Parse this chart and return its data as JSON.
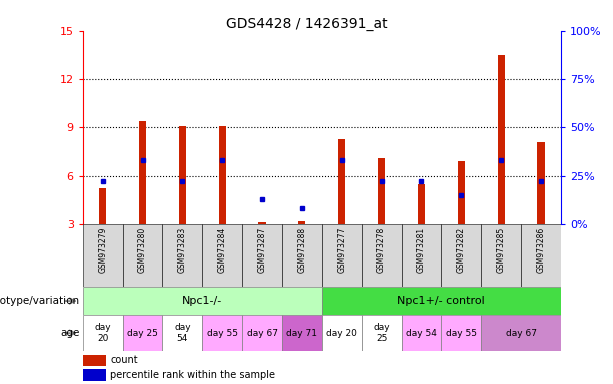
{
  "title": "GDS4428 / 1426391_at",
  "samples": [
    "GSM973279",
    "GSM973280",
    "GSM973283",
    "GSM973284",
    "GSM973287",
    "GSM973288",
    "GSM973277",
    "GSM973278",
    "GSM973281",
    "GSM973282",
    "GSM973285",
    "GSM973286"
  ],
  "counts": [
    5.2,
    9.4,
    9.1,
    9.1,
    3.1,
    3.15,
    8.3,
    7.1,
    5.5,
    6.9,
    13.5,
    8.1
  ],
  "percentiles": [
    22,
    33,
    22,
    33,
    13,
    8,
    33,
    22,
    22,
    15,
    33,
    22
  ],
  "ylim_left": [
    3,
    15
  ],
  "ylim_right": [
    0,
    100
  ],
  "yticks_left": [
    3,
    6,
    9,
    12,
    15
  ],
  "yticks_right": [
    0,
    25,
    50,
    75,
    100
  ],
  "bar_color": "#cc2200",
  "percentile_color": "#0000cc",
  "genotype_groups": [
    {
      "label": "Npc1-/-",
      "start": 0,
      "end": 5,
      "color": "#bbffbb"
    },
    {
      "label": "Npc1+/- control",
      "start": 6,
      "end": 11,
      "color": "#44dd44"
    }
  ],
  "age_groups": [
    {
      "s": 0,
      "e": 0,
      "label": "day\n20",
      "color": "#ffffff"
    },
    {
      "s": 1,
      "e": 1,
      "label": "day 25",
      "color": "#ffaaff"
    },
    {
      "s": 2,
      "e": 2,
      "label": "day\n54",
      "color": "#ffffff"
    },
    {
      "s": 3,
      "e": 3,
      "label": "day 55",
      "color": "#ffaaff"
    },
    {
      "s": 4,
      "e": 4,
      "label": "day 67",
      "color": "#ffaaff"
    },
    {
      "s": 5,
      "e": 5,
      "label": "day 71",
      "color": "#cc66cc"
    },
    {
      "s": 6,
      "e": 6,
      "label": "day 20",
      "color": "#ffffff"
    },
    {
      "s": 7,
      "e": 7,
      "label": "day\n25",
      "color": "#ffffff"
    },
    {
      "s": 8,
      "e": 8,
      "label": "day 54",
      "color": "#ffaaff"
    },
    {
      "s": 9,
      "e": 9,
      "label": "day 55",
      "color": "#ffaaff"
    },
    {
      "s": 10,
      "e": 11,
      "label": "day 67",
      "color": "#cc88cc"
    }
  ],
  "left_label_genotype": "genotype/variation",
  "left_label_age": "age",
  "legend_count": "count",
  "legend_percentile": "percentile rank within the sample",
  "background_color": "#ffffff",
  "label_bg_color": "#d8d8d8",
  "bar_width": 0.18
}
